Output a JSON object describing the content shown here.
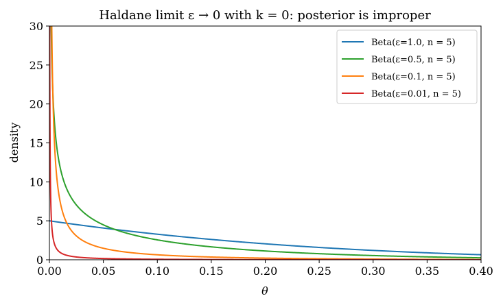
{
  "chart_data": {
    "type": "line",
    "title": "Haldane limit ε → 0 with k = 0: posterior is improper",
    "xlabel": "θ",
    "ylabel": "density",
    "xlim": [
      0.0,
      0.4
    ],
    "ylim": [
      0,
      30
    ],
    "x_ticks": [
      "0.00",
      "0.05",
      "0.10",
      "0.15",
      "0.20",
      "0.25",
      "0.30",
      "0.35",
      "0.40"
    ],
    "y_ticks": [
      "0",
      "5",
      "10",
      "15",
      "20",
      "25",
      "30"
    ],
    "grid": false,
    "legend_position": "top-right",
    "series": [
      {
        "name": "Beta(ε=1.0, n = 5)",
        "color": "#1f77b4",
        "alpha": 1.0,
        "beta": 5,
        "x": [
          0.0,
          0.05,
          0.1,
          0.15,
          0.2,
          0.25,
          0.3,
          0.35,
          0.4
        ],
        "y": [
          5.0,
          4.07,
          3.28,
          2.61,
          2.05,
          1.58,
          1.2,
          0.89,
          0.65
        ]
      },
      {
        "name": "Beta(ε=0.5, n = 5)",
        "color": "#2ca02c",
        "alpha": 0.5,
        "beta": 5,
        "x": [
          0.005,
          0.01,
          0.02,
          0.05,
          0.1,
          0.15,
          0.2,
          0.25,
          0.3,
          0.35,
          0.4
        ],
        "y": [
          19.98,
          13.93,
          9.6,
          5.48,
          3.43,
          2.42,
          1.78,
          1.33,
          0.99,
          0.73,
          0.53
        ]
      },
      {
        "name": "Beta(ε=0.1, n = 5)",
        "color": "#ff7f0e",
        "alpha": 0.1,
        "beta": 5,
        "x": [
          0.002,
          0.005,
          0.01,
          0.02,
          0.05,
          0.1,
          0.2,
          0.3,
          0.4
        ],
        "y": [
          27.5,
          11.9,
          6.3,
          3.3,
          1.3,
          0.6,
          0.24,
          0.12,
          0.06
        ]
      },
      {
        "name": "Beta(ε=0.01, n = 5)",
        "color": "#d62728",
        "alpha": 0.01,
        "beta": 5,
        "x": [
          0.0003,
          0.001,
          0.002,
          0.005,
          0.01,
          0.05,
          0.1,
          0.2,
          0.4
        ],
        "y": [
          28.3,
          8.6,
          4.3,
          1.7,
          0.84,
          0.16,
          0.07,
          0.03,
          0.01
        ]
      }
    ]
  }
}
